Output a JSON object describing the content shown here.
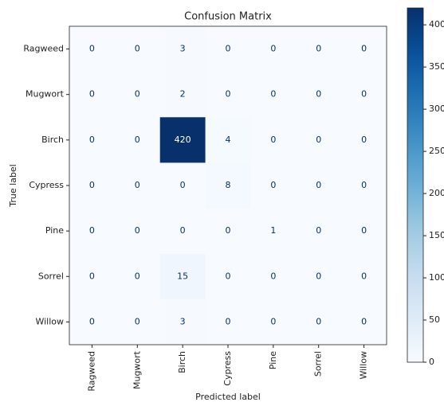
{
  "chart_data": {
    "type": "heatmap",
    "title": "Confusion Matrix",
    "xlabel": "Predicted label",
    "ylabel": "True label",
    "x_categories": [
      "Ragweed",
      "Mugwort",
      "Birch",
      "Cypress",
      "Pine",
      "Sorrel",
      "Willow"
    ],
    "y_categories": [
      "Ragweed",
      "Mugwort",
      "Birch",
      "Cypress",
      "Pine",
      "Sorrel",
      "Willow"
    ],
    "values": [
      [
        0,
        0,
        3,
        0,
        0,
        0,
        0
      ],
      [
        0,
        0,
        2,
        0,
        0,
        0,
        0
      ],
      [
        0,
        0,
        420,
        4,
        0,
        0,
        0
      ],
      [
        0,
        0,
        0,
        8,
        0,
        0,
        0
      ],
      [
        0,
        0,
        0,
        0,
        1,
        0,
        0
      ],
      [
        0,
        0,
        15,
        0,
        0,
        0,
        0
      ],
      [
        0,
        0,
        3,
        0,
        0,
        0,
        0
      ]
    ],
    "colormap": "Blues",
    "zlim": [
      0,
      420
    ],
    "zticks": [
      0,
      50,
      100,
      150,
      200,
      250,
      300,
      350,
      400
    ]
  }
}
